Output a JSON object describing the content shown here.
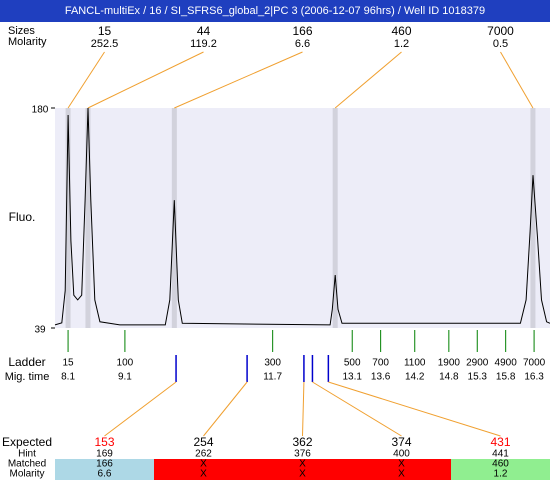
{
  "header": {
    "title": "FANCL-multiEx / 16 / SI_SFRS6_global_2|PC 3 (2006-12-07 96hrs) / Well ID 1018379"
  },
  "peaks": {
    "labels": [
      "Sizes",
      "Molarity"
    ],
    "columns": [
      {
        "size": 15,
        "molarity": 252.5,
        "time": 8.1
      },
      {
        "size": 44,
        "molarity": 119.2,
        "time": 8.45
      },
      {
        "size": 166,
        "molarity": 6.6,
        "time": 9.97
      },
      {
        "size": 460,
        "molarity": 1.2,
        "time": 12.8
      },
      {
        "size": 7000,
        "molarity": 0.5,
        "time": 16.28
      }
    ]
  },
  "plot": {
    "ylabel": "Fluo.",
    "ylim": [
      39,
      180
    ],
    "yticks": [
      39,
      180
    ],
    "xlim": [
      7.87,
      16.58
    ],
    "background": "#ededf8",
    "band_color": "#d2d2dc",
    "line_color": "#000000",
    "trace": {
      "x": [
        7.87,
        7.99,
        8.05,
        8.1,
        8.15,
        8.2,
        8.27,
        8.34,
        8.4,
        8.45,
        8.5,
        8.57,
        8.66,
        9.01,
        9.81,
        9.89,
        9.97,
        10.04,
        10.11,
        12.71,
        12.75,
        12.8,
        12.85,
        12.92,
        16.06,
        16.16,
        16.23,
        16.28,
        16.36,
        16.43,
        16.52,
        16.58
      ],
      "y": [
        41,
        42.3,
        63,
        175.5,
        95,
        60,
        57,
        60,
        121,
        180,
        121,
        57,
        43,
        41,
        41,
        57,
        121,
        57,
        42,
        41,
        51,
        73,
        51,
        42,
        42,
        57,
        101,
        137,
        97,
        57,
        43,
        42
      ]
    }
  },
  "ladder": {
    "labels": [
      "Ladder",
      "Mig. time"
    ],
    "sizes": [
      15,
      100,
      300,
      500,
      700,
      1100,
      1900,
      2900,
      4900,
      7000
    ],
    "times": [
      8.1,
      9.1,
      11.7,
      13.1,
      13.6,
      14.2,
      14.8,
      15.3,
      15.8,
      16.3
    ],
    "color": "#008000"
  },
  "expected": {
    "labels": [
      "Expected",
      "Hint",
      "Matched",
      "Molarity"
    ],
    "marker_color": "#0000cc",
    "link_color": "#f0a030",
    "columns": [
      {
        "expected": 153,
        "hint": 169,
        "matched": "166",
        "molarity": "6.6",
        "time": 10.0,
        "expected_color": "#ff0000",
        "color": "#add8e6"
      },
      {
        "expected": 254,
        "hint": 262,
        "matched": "X",
        "molarity": "X",
        "time": 11.25,
        "expected_color": "#000000",
        "color": "#ff0000"
      },
      {
        "expected": 362,
        "hint": 376,
        "matched": "X",
        "molarity": "X",
        "time": 12.25,
        "expected_color": "#000000",
        "color": "#ff0000"
      },
      {
        "expected": 374,
        "hint": 400,
        "matched": "X",
        "molarity": "X",
        "time": 12.4,
        "expected_color": "#000000",
        "color": "#ff0000"
      },
      {
        "expected": 431,
        "hint": 441,
        "matched": "460",
        "molarity": "1.2",
        "time": 12.68,
        "expected_color": "#ff0000",
        "color": "#90ee90"
      }
    ]
  }
}
